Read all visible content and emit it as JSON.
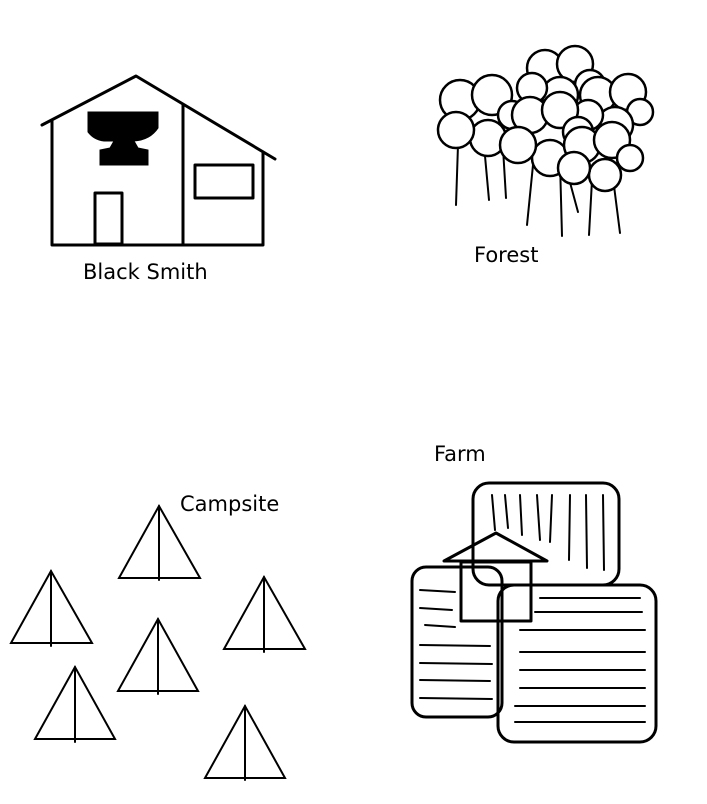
{
  "locations": {
    "blacksmith": {
      "label": "Black Smith",
      "icon": "anvil-house-icon"
    },
    "forest": {
      "label": "Forest",
      "icon": "trees-icon"
    },
    "campsite": {
      "label": "Campsite",
      "icon": "tents-icon"
    },
    "farm": {
      "label": "Farm",
      "icon": "farm-fields-icon"
    }
  },
  "colors": {
    "ink": "#000000",
    "background": "#ffffff"
  }
}
